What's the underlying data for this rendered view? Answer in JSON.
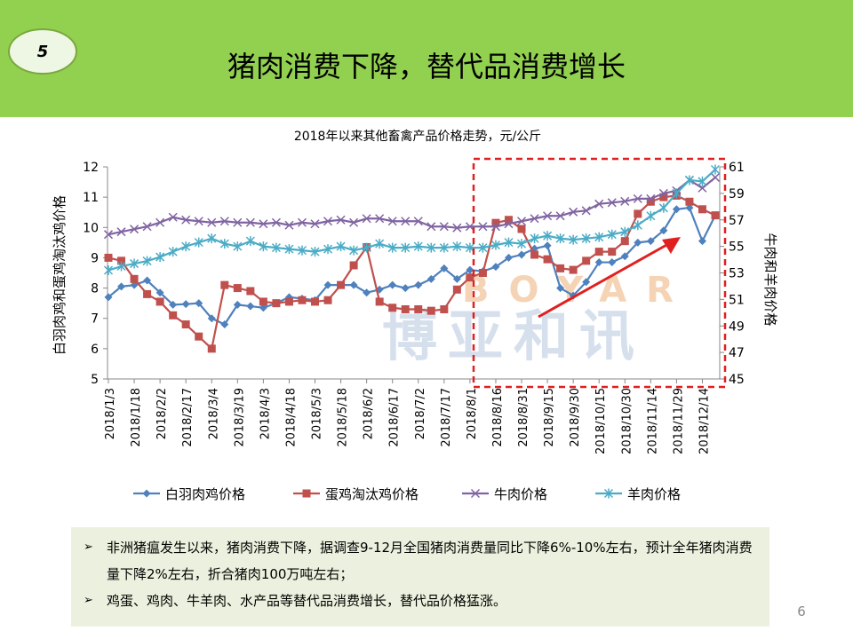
{
  "header": {
    "badge": "5",
    "title": "猪肉消费下降，替代品消费增长"
  },
  "watermark": {
    "en": "BOYAR",
    "cn": "博亚和讯"
  },
  "chart_data": {
    "type": "line",
    "title": "2018年以来其他畜禽产品价格走势，元/公斤",
    "y_label": "白羽肉鸡和蛋鸡淘汰鸡价格",
    "y2_label": "牛肉和羊肉价格",
    "categories": [
      "2018/1/3",
      null,
      "2018/1/18",
      null,
      "2018/2/2",
      null,
      "2018/2/17",
      null,
      "2018/3/4",
      null,
      "2018/3/19",
      null,
      "2018/4/3",
      null,
      "2018/4/18",
      null,
      "2018/5/3",
      null,
      "2018/5/18",
      null,
      "2018/6/2",
      null,
      "2018/6/17",
      null,
      "2018/7/2",
      null,
      "2018/7/17",
      null,
      "2018/8/1",
      null,
      "2018/8/16",
      null,
      "2018/8/31",
      null,
      "2018/9/15",
      null,
      "2018/9/30",
      null,
      "2018/10/15",
      null,
      "2018/10/30",
      null,
      "2018/11/14",
      null,
      "2018/11/29",
      null,
      "2018/12/14",
      null
    ],
    "ylim": [
      5,
      12
    ],
    "yticks": [
      5,
      6,
      7,
      8,
      9,
      10,
      11,
      12
    ],
    "y2lim": [
      45,
      61
    ],
    "y2ticks": [
      45,
      47,
      49,
      51,
      53,
      55,
      57,
      59,
      61
    ],
    "legend": "bottom",
    "series": [
      {
        "name": "白羽肉鸡价格",
        "color": "#4f81bd",
        "marker": "diamond",
        "values": [
          7.7,
          8.05,
          8.1,
          8.25,
          7.85,
          7.45,
          7.47,
          7.5,
          7.0,
          6.8,
          7.45,
          7.4,
          7.35,
          7.5,
          7.7,
          7.65,
          7.6,
          8.1,
          8.1,
          8.1,
          7.85,
          7.95,
          8.1,
          8.0,
          8.1,
          8.3,
          8.65,
          8.3,
          8.6,
          8.55,
          8.7,
          9.0,
          9.1,
          9.3,
          9.4,
          8.0,
          7.75,
          8.2,
          8.85,
          8.85,
          9.05,
          9.5,
          9.55,
          9.9,
          10.6,
          10.65,
          9.55,
          10.4
        ]
      },
      {
        "name": "蛋鸡淘汰鸡价格",
        "color": "#c0504d",
        "marker": "square",
        "values": [
          9.0,
          8.9,
          8.3,
          7.8,
          7.55,
          7.1,
          6.8,
          6.4,
          6.0,
          8.1,
          8.0,
          7.9,
          7.55,
          7.5,
          7.55,
          7.6,
          7.55,
          7.6,
          8.1,
          8.75,
          9.35,
          7.55,
          7.35,
          7.3,
          7.3,
          7.25,
          7.3,
          7.95,
          8.35,
          8.5,
          10.15,
          10.25,
          9.95,
          9.1,
          8.95,
          8.65,
          8.6,
          8.9,
          9.2,
          9.2,
          9.55,
          10.45,
          10.85,
          11.0,
          11.05,
          10.85,
          10.6,
          10.4
        ]
      },
      {
        "name": "牛肉价格",
        "color": "#8064a2",
        "marker": "x",
        "axis": "y2",
        "values": [
          55.9,
          56.1,
          56.3,
          56.5,
          56.8,
          57.2,
          57.0,
          56.9,
          56.8,
          56.9,
          56.8,
          56.8,
          56.7,
          56.8,
          56.6,
          56.8,
          56.7,
          56.9,
          57.0,
          56.8,
          57.1,
          57.1,
          56.9,
          56.9,
          56.9,
          56.5,
          56.5,
          56.4,
          56.5,
          56.5,
          56.5,
          56.7,
          56.9,
          57.1,
          57.3,
          57.3,
          57.6,
          57.7,
          58.2,
          58.3,
          58.4,
          58.6,
          58.6,
          59.0,
          59.2,
          60.0,
          59.4,
          60.2
        ]
      },
      {
        "name": "羊肉价格",
        "color": "#4bacc6",
        "marker": "star",
        "axis": "y2",
        "values": [
          53.2,
          53.5,
          53.7,
          53.9,
          54.2,
          54.6,
          55.0,
          55.3,
          55.6,
          55.2,
          55.0,
          55.4,
          55.0,
          54.9,
          54.8,
          54.7,
          54.6,
          54.8,
          55.0,
          54.7,
          54.9,
          55.2,
          54.9,
          54.9,
          55.0,
          54.9,
          54.9,
          55.0,
          54.9,
          54.9,
          55.1,
          55.3,
          55.2,
          55.6,
          55.8,
          55.6,
          55.5,
          55.6,
          55.7,
          55.9,
          56.1,
          56.6,
          57.3,
          57.9,
          59.0,
          60.0,
          59.9,
          60.8
        ]
      }
    ]
  },
  "bullets": [
    "非洲猪瘟发生以来，猪肉消费下降，据调查9-12月全国猪肉消费量同比下降6%-10%左右，预计全年猪肉消费量下降2%左右，折合猪肉100万吨左右；",
    "鸡蛋、鸡肉、牛羊肉、水产品等替代品消费增长，替代品价格猛涨。"
  ],
  "footer": {
    "page": "6"
  }
}
